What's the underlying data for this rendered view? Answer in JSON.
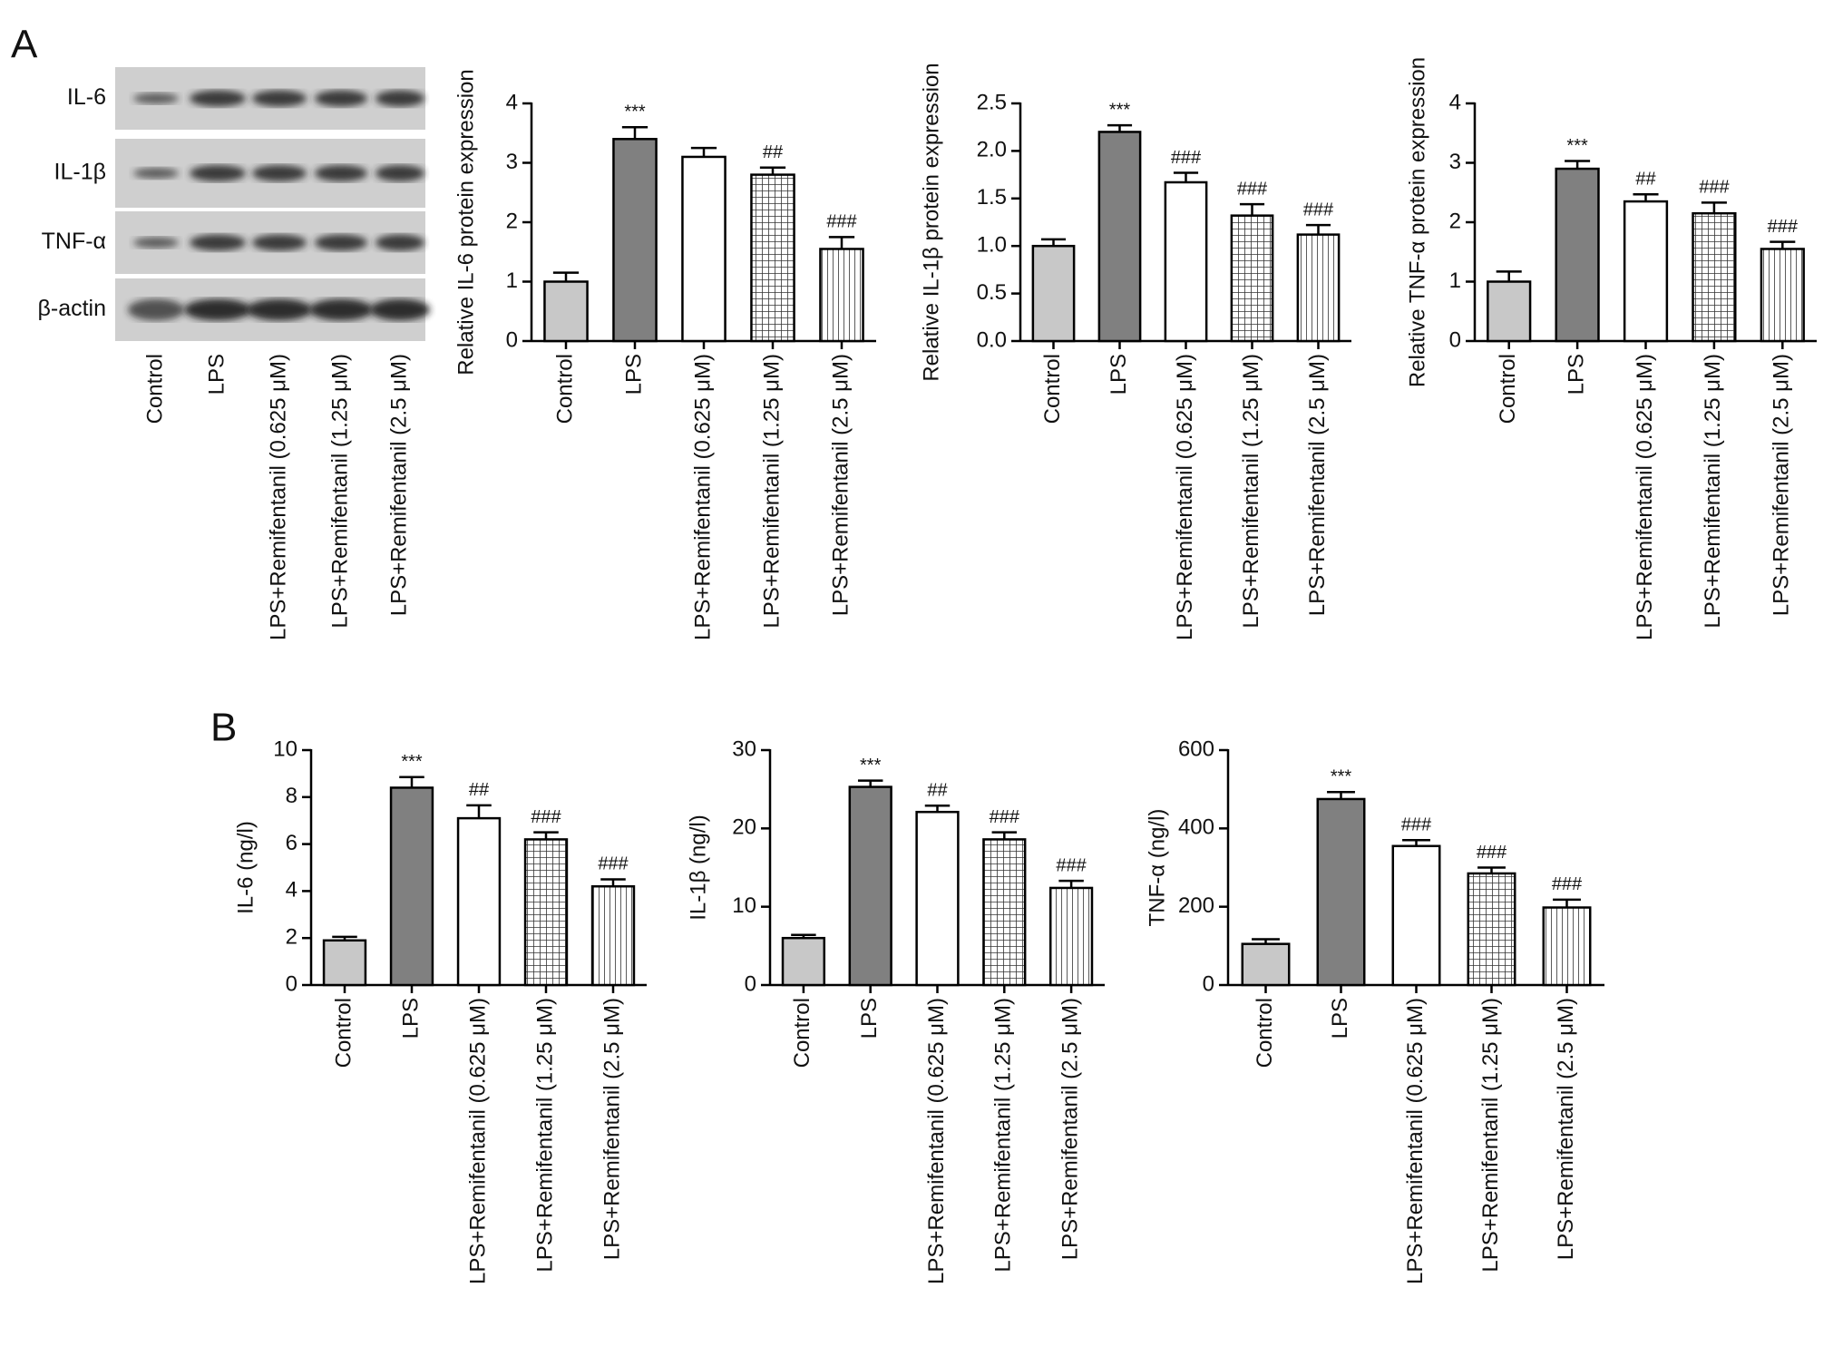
{
  "panel_labels": [
    "A",
    "B"
  ],
  "blot": {
    "rows": [
      "IL-6",
      "IL-1β",
      "TNF-α",
      "β-actin"
    ],
    "lanes": [
      "Control",
      "LPS",
      "LPS+Remifentanil (0.625 μM)",
      "LPS+Remifentanil (1.25 μM)",
      "LPS+Remifentanil (2.5 μM)"
    ]
  },
  "chart_data": [
    {
      "type": "bar",
      "y_label": "Relative IL-6 protein expression",
      "categories": [
        "Control",
        "LPS",
        "LPS+Remifentanil (0.625 μM)",
        "LPS+Remifentanil (1.25 μM)",
        "LPS+Remifentanil (2.5 μM)"
      ],
      "values": [
        1.0,
        3.4,
        3.1,
        2.8,
        1.55
      ],
      "errors": [
        0.15,
        0.2,
        0.15,
        0.12,
        0.2
      ],
      "annotations": [
        null,
        "***",
        null,
        "##",
        "###"
      ],
      "colors": [
        "#c8c8c8",
        "#808080",
        "#ffffff",
        "#ffffff",
        "#ffffff"
      ],
      "patterns": [
        "solid",
        "solid",
        "solid",
        "grid",
        "vlines"
      ],
      "ylim": [
        0,
        4
      ],
      "yticks": [
        0,
        1,
        2,
        3,
        4
      ]
    },
    {
      "type": "bar",
      "y_label": "Relative IL-1β protein expression",
      "categories": [
        "Control",
        "LPS",
        "LPS+Remifentanil (0.625 μM)",
        "LPS+Remifentanil (1.25 μM)",
        "LPS+Remifentanil (2.5 μM)"
      ],
      "values": [
        1.0,
        2.2,
        1.67,
        1.32,
        1.12
      ],
      "errors": [
        0.07,
        0.07,
        0.1,
        0.12,
        0.1
      ],
      "annotations": [
        null,
        "***",
        "###",
        "###",
        "###"
      ],
      "colors": [
        "#c8c8c8",
        "#808080",
        "#ffffff",
        "#ffffff",
        "#ffffff"
      ],
      "patterns": [
        "solid",
        "solid",
        "solid",
        "grid",
        "vlines"
      ],
      "ylim": [
        0,
        2.5
      ],
      "yticks": [
        {
          "value": 0,
          "label": "0.0"
        },
        0.5,
        {
          "value": 1,
          "label": "1.0"
        },
        1.5,
        {
          "value": 2,
          "label": "2.0"
        },
        2.5
      ]
    },
    {
      "type": "bar",
      "y_label": "Relative TNF-α protein expression",
      "categories": [
        "Control",
        "LPS",
        "LPS+Remifentanil (0.625 μM)",
        "LPS+Remifentanil (1.25 μM)",
        "LPS+Remifentanil (2.5 μM)"
      ],
      "values": [
        1.0,
        2.9,
        2.35,
        2.15,
        1.55
      ],
      "errors": [
        0.17,
        0.13,
        0.12,
        0.18,
        0.12
      ],
      "annotations": [
        null,
        "***",
        "##",
        "###",
        "###"
      ],
      "colors": [
        "#c8c8c8",
        "#808080",
        "#ffffff",
        "#ffffff",
        "#ffffff"
      ],
      "patterns": [
        "solid",
        "solid",
        "solid",
        "grid",
        "vlines"
      ],
      "ylim": [
        0,
        4
      ],
      "yticks": [
        0,
        1,
        2,
        3,
        4
      ]
    },
    {
      "type": "bar",
      "y_label": "IL-6 (ng/l)",
      "categories": [
        "Control",
        "LPS",
        "LPS+Remifentanil (0.625 μM)",
        "LPS+Remifentanil (1.25 μM)",
        "LPS+Remifentanil (2.5 μM)"
      ],
      "values": [
        1.9,
        8.4,
        7.1,
        6.2,
        4.2
      ],
      "errors": [
        0.15,
        0.45,
        0.55,
        0.3,
        0.3
      ],
      "annotations": [
        null,
        "***",
        "##",
        "###",
        "###"
      ],
      "colors": [
        "#c8c8c8",
        "#808080",
        "#ffffff",
        "#ffffff",
        "#ffffff"
      ],
      "patterns": [
        "solid",
        "solid",
        "solid",
        "grid",
        "vlines"
      ],
      "ylim": [
        0,
        10
      ],
      "yticks": [
        0,
        2,
        4,
        6,
        8,
        10
      ]
    },
    {
      "type": "bar",
      "y_label": "IL-1β (ng/l)",
      "categories": [
        "Control",
        "LPS",
        "LPS+Remifentanil (0.625 μM)",
        "LPS+Remifentanil (1.25 μM)",
        "LPS+Remifentanil (2.5 μM)"
      ],
      "values": [
        6,
        25.3,
        22.1,
        18.6,
        12.4
      ],
      "errors": [
        0.4,
        0.8,
        0.8,
        0.9,
        0.9
      ],
      "annotations": [
        null,
        "***",
        "##",
        "###",
        "###"
      ],
      "colors": [
        "#c8c8c8",
        "#808080",
        "#ffffff",
        "#ffffff",
        "#ffffff"
      ],
      "patterns": [
        "solid",
        "solid",
        "solid",
        "grid",
        "vlines"
      ],
      "ylim": [
        0,
        30
      ],
      "yticks": [
        0,
        10,
        20,
        30
      ]
    },
    {
      "type": "bar",
      "y_label": "TNF-α (ng/l)",
      "categories": [
        "Control",
        "LPS",
        "LPS+Remifentanil (0.625 μM)",
        "LPS+Remifentanil (1.25 μM)",
        "LPS+Remifentanil (2.5 μM)"
      ],
      "values": [
        105,
        475,
        355,
        285,
        198
      ],
      "errors": [
        12,
        18,
        15,
        15,
        20
      ],
      "annotations": [
        null,
        "***",
        "###",
        "###",
        "###"
      ],
      "colors": [
        "#c8c8c8",
        "#808080",
        "#ffffff",
        "#ffffff",
        "#ffffff"
      ],
      "patterns": [
        "solid",
        "solid",
        "solid",
        "grid",
        "vlines"
      ],
      "ylim": [
        0,
        600
      ],
      "yticks": [
        0,
        200,
        400,
        600
      ]
    }
  ]
}
